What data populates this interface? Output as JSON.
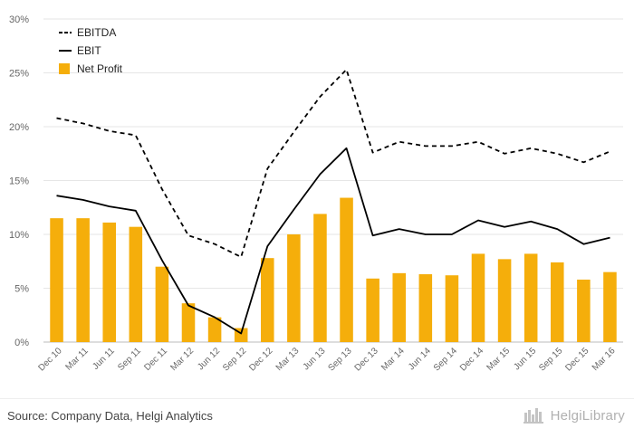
{
  "chart_data": {
    "type": "bar-line-combo",
    "title": "",
    "xlabel": "",
    "ylabel": "",
    "ylim": [
      0,
      30
    ],
    "yticks": [
      "0%",
      "5%",
      "10%",
      "15%",
      "20%",
      "25%",
      "30%"
    ],
    "legend_position": "top-left",
    "categories": [
      "Dec 10",
      "Mar 11",
      "Jun 11",
      "Sep 11",
      "Dec 11",
      "Mar 12",
      "Jun 12",
      "Sep 12",
      "Dec 12",
      "Mar 13",
      "Jun 13",
      "Sep 13",
      "Dec 13",
      "Mar 14",
      "Jun 14",
      "Sep 14",
      "Dec 14",
      "Mar 15",
      "Jun 15",
      "Sep 15",
      "Dec 15",
      "Mar 16"
    ],
    "series": [
      {
        "name": "EBITDA",
        "kind": "line",
        "style": "dashed",
        "color": "#000000",
        "values": [
          20.8,
          20.3,
          19.6,
          19.2,
          14.2,
          9.9,
          9.1,
          7.9,
          16.1,
          19.5,
          22.8,
          25.3,
          17.6,
          18.6,
          18.2,
          18.2,
          18.6,
          17.5,
          18.0,
          17.5,
          16.7,
          17.7
        ]
      },
      {
        "name": "EBIT",
        "kind": "line",
        "style": "solid",
        "color": "#000000",
        "values": [
          13.6,
          13.2,
          12.6,
          12.2,
          7.6,
          3.4,
          2.3,
          0.8,
          8.9,
          12.3,
          15.6,
          18.0,
          9.9,
          10.5,
          10.0,
          10.0,
          11.3,
          10.7,
          11.2,
          10.5,
          9.1,
          9.7
        ]
      },
      {
        "name": "Net Profit",
        "kind": "bar",
        "color": "#f5ae0b",
        "values": [
          11.5,
          11.5,
          11.1,
          10.7,
          7.0,
          3.6,
          2.3,
          1.3,
          7.8,
          10.0,
          11.9,
          13.4,
          5.9,
          6.4,
          6.3,
          6.2,
          8.2,
          7.7,
          8.2,
          7.4,
          5.8,
          6.5
        ]
      }
    ]
  },
  "footer": {
    "source": "Source: Company Data, Helgi Analytics",
    "brand": "HelgiLibrary"
  }
}
